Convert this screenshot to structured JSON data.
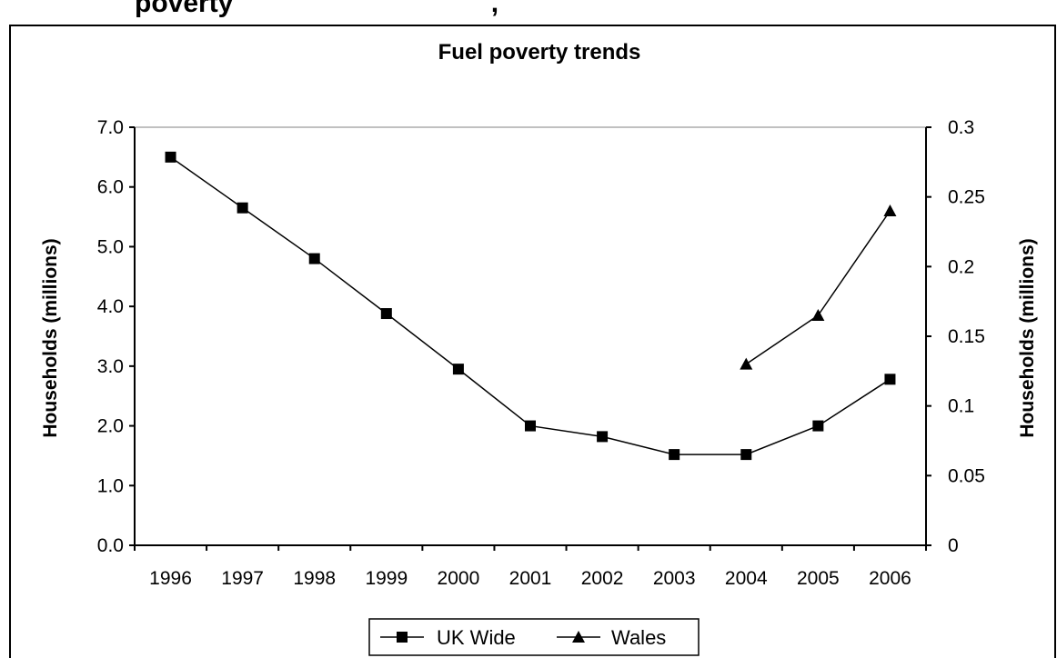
{
  "page": {
    "top_text": "poverty                                  ,"
  },
  "chart_data": {
    "type": "line",
    "title": "Fuel poverty trends",
    "categories": [
      "1996",
      "1997",
      "1998",
      "1999",
      "2000",
      "2001",
      "2002",
      "2003",
      "2004",
      "2005",
      "2006"
    ],
    "y_left": {
      "label": "Households (millions)",
      "range": [
        0,
        7
      ],
      "ticks": [
        "0.0",
        "1.0",
        "2.0",
        "3.0",
        "4.0",
        "5.0",
        "6.0",
        "7.0"
      ]
    },
    "y_right": {
      "label": "Households (millions)",
      "range": [
        0,
        0.3
      ],
      "ticks": [
        "0",
        "0.05",
        "0.1",
        "0.15",
        "0.2",
        "0.25",
        "0.3"
      ]
    },
    "series": [
      {
        "name": "UK Wide",
        "axis": "left",
        "marker": "square",
        "values": [
          6.5,
          5.65,
          4.8,
          3.88,
          2.95,
          2.0,
          1.82,
          1.52,
          1.52,
          2.0,
          2.78
        ]
      },
      {
        "name": "Wales",
        "axis": "right",
        "marker": "triangle",
        "values": [
          null,
          null,
          null,
          null,
          null,
          null,
          null,
          null,
          0.13,
          0.165,
          0.24
        ]
      }
    ],
    "grid": "top line only",
    "legend": "bottom-center",
    "colors": {
      "line": "#000000",
      "marker": "#000000",
      "top_gridline": "#c0c0c0",
      "frame": "#000000"
    }
  }
}
